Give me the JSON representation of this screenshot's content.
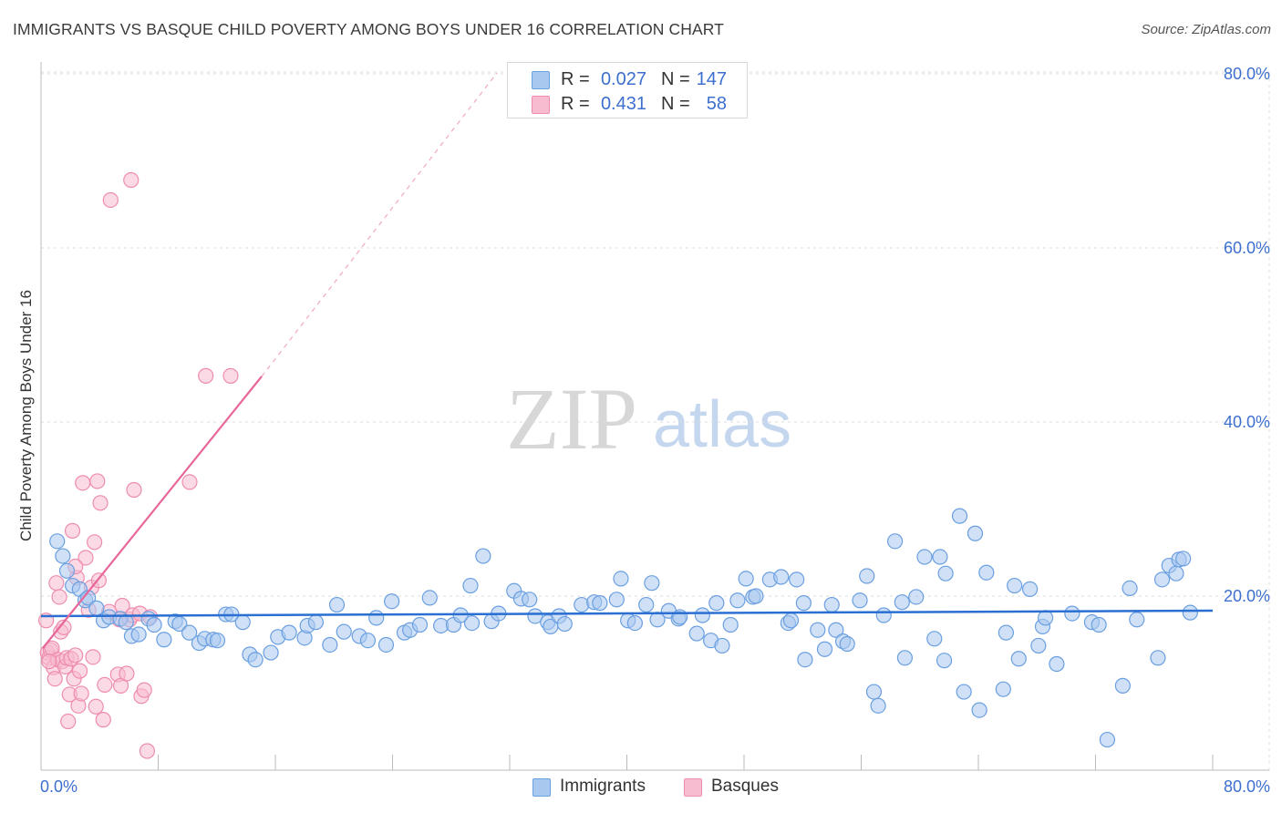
{
  "title": "IMMIGRANTS VS BASQUE CHILD POVERTY AMONG BOYS UNDER 16 CORRELATION CHART",
  "source": "Source: ZipAtlas.com",
  "watermark": {
    "zip": "ZIP",
    "atlas": "atlas"
  },
  "colors": {
    "immigrants_fill": "#a9c8f0",
    "immigrants_stroke": "#6a9fe0",
    "immigrants_line": "#2a6fd1",
    "basques_fill": "#f7bcd0",
    "basques_stroke": "#ee8cad",
    "basques_line": "#e8679a",
    "axis_label": "#3c6fcf",
    "grid": "#dcdcdc"
  },
  "legend": {
    "rows": [
      {
        "r_label": "R =",
        "r_value": "0.027",
        "n_label": "N =",
        "n_value": "147"
      },
      {
        "r_label": "R =",
        "r_value": "0.431",
        "n_label": "N =",
        "n_value": "58"
      }
    ],
    "bottom": [
      "Immigrants",
      "Basques"
    ]
  },
  "chart_data": {
    "type": "scatter",
    "ylabel": "Child Poverty Among Boys Under 16",
    "xlim": [
      0,
      80
    ],
    "ylim": [
      0,
      80
    ],
    "x_tick_labels": [
      "0.0%",
      "80.0%"
    ],
    "y_tick_labels": [
      "20.0%",
      "40.0%",
      "60.0%",
      "80.0%"
    ],
    "y_ticks": [
      20,
      40,
      60,
      80
    ],
    "grid": "horizontal dashed",
    "legend_placement": "top-center and bottom",
    "series": [
      {
        "name": "Immigrants",
        "trend": {
          "x": [
            0,
            80
          ],
          "y": [
            17.6,
            18.2
          ]
        },
        "points": [
          [
            0.5,
            26.3
          ],
          [
            0.9,
            24.6
          ],
          [
            1.2,
            22.9
          ],
          [
            1.6,
            21.2
          ],
          [
            2.1,
            20.8
          ],
          [
            2.5,
            19.5
          ],
          [
            2.7,
            19.8
          ],
          [
            3.3,
            18.6
          ],
          [
            3.8,
            17.2
          ],
          [
            4.2,
            17.6
          ],
          [
            5.0,
            17.4
          ],
          [
            5.4,
            17.0
          ],
          [
            5.8,
            15.4
          ],
          [
            6.3,
            15.6
          ],
          [
            7.0,
            17.4
          ],
          [
            7.4,
            16.7
          ],
          [
            8.1,
            15.0
          ],
          [
            8.9,
            17.1
          ],
          [
            9.2,
            16.8
          ],
          [
            9.9,
            15.8
          ],
          [
            10.6,
            14.6
          ],
          [
            11.0,
            15.1
          ],
          [
            11.6,
            15.0
          ],
          [
            11.9,
            14.9
          ],
          [
            12.5,
            17.9
          ],
          [
            12.9,
            17.9
          ],
          [
            13.7,
            17.0
          ],
          [
            14.2,
            13.3
          ],
          [
            14.6,
            12.7
          ],
          [
            15.7,
            13.5
          ],
          [
            16.2,
            15.3
          ],
          [
            17.0,
            15.8
          ],
          [
            18.1,
            15.2
          ],
          [
            18.3,
            16.6
          ],
          [
            18.9,
            17.0
          ],
          [
            19.9,
            14.4
          ],
          [
            20.4,
            19.0
          ],
          [
            20.9,
            15.9
          ],
          [
            22.0,
            15.4
          ],
          [
            22.6,
            14.9
          ],
          [
            23.2,
            17.5
          ],
          [
            23.9,
            14.4
          ],
          [
            24.3,
            19.4
          ],
          [
            25.2,
            15.8
          ],
          [
            25.6,
            16.1
          ],
          [
            26.3,
            16.7
          ],
          [
            27.0,
            19.8
          ],
          [
            27.8,
            16.6
          ],
          [
            28.7,
            16.7
          ],
          [
            29.2,
            17.8
          ],
          [
            29.9,
            21.2
          ],
          [
            30.0,
            16.9
          ],
          [
            30.8,
            24.6
          ],
          [
            31.4,
            17.1
          ],
          [
            31.9,
            18.0
          ],
          [
            33.0,
            20.6
          ],
          [
            33.5,
            19.7
          ],
          [
            34.1,
            19.6
          ],
          [
            34.5,
            17.7
          ],
          [
            35.4,
            17.0
          ],
          [
            35.6,
            16.5
          ],
          [
            36.2,
            17.7
          ],
          [
            36.6,
            16.8
          ],
          [
            37.8,
            19.0
          ],
          [
            38.7,
            19.3
          ],
          [
            39.1,
            19.2
          ],
          [
            40.3,
            19.6
          ],
          [
            40.6,
            22.0
          ],
          [
            41.1,
            17.2
          ],
          [
            41.6,
            16.9
          ],
          [
            42.4,
            19.0
          ],
          [
            42.8,
            21.5
          ],
          [
            43.2,
            17.3
          ],
          [
            44.0,
            18.3
          ],
          [
            44.7,
            17.4
          ],
          [
            44.8,
            17.6
          ],
          [
            46.0,
            15.7
          ],
          [
            46.4,
            17.8
          ],
          [
            47.0,
            14.9
          ],
          [
            47.4,
            19.2
          ],
          [
            47.8,
            14.3
          ],
          [
            48.4,
            16.7
          ],
          [
            48.9,
            19.5
          ],
          [
            49.5,
            22.0
          ],
          [
            50.0,
            19.9
          ],
          [
            50.2,
            20.0
          ],
          [
            51.2,
            21.9
          ],
          [
            52.0,
            22.2
          ],
          [
            52.5,
            16.9
          ],
          [
            52.7,
            17.2
          ],
          [
            53.1,
            21.9
          ],
          [
            53.6,
            19.2
          ],
          [
            53.7,
            12.7
          ],
          [
            54.6,
            16.1
          ],
          [
            55.1,
            13.9
          ],
          [
            55.6,
            19.0
          ],
          [
            55.9,
            16.1
          ],
          [
            56.4,
            14.8
          ],
          [
            56.7,
            14.5
          ],
          [
            57.6,
            19.5
          ],
          [
            58.1,
            22.3
          ],
          [
            58.6,
            9.0
          ],
          [
            58.9,
            7.4
          ],
          [
            59.3,
            17.8
          ],
          [
            60.1,
            26.3
          ],
          [
            60.6,
            19.3
          ],
          [
            60.8,
            12.9
          ],
          [
            61.6,
            19.9
          ],
          [
            62.2,
            24.5
          ],
          [
            62.9,
            15.1
          ],
          [
            63.3,
            24.5
          ],
          [
            63.6,
            12.6
          ],
          [
            63.7,
            22.6
          ],
          [
            64.7,
            29.2
          ],
          [
            65.0,
            9.0
          ],
          [
            65.8,
            27.2
          ],
          [
            66.1,
            6.9
          ],
          [
            66.6,
            22.7
          ],
          [
            67.8,
            9.3
          ],
          [
            68.0,
            15.8
          ],
          [
            68.6,
            21.2
          ],
          [
            68.9,
            12.8
          ],
          [
            69.7,
            20.8
          ],
          [
            70.3,
            14.3
          ],
          [
            70.6,
            16.5
          ],
          [
            70.8,
            17.5
          ],
          [
            71.6,
            12.2
          ],
          [
            72.7,
            18.0
          ],
          [
            74.1,
            17.0
          ],
          [
            74.6,
            16.7
          ],
          [
            75.2,
            3.5
          ],
          [
            76.3,
            9.7
          ],
          [
            76.8,
            20.9
          ],
          [
            77.3,
            17.3
          ],
          [
            78.8,
            12.9
          ],
          [
            79.1,
            21.9
          ],
          [
            79.6,
            23.5
          ],
          [
            80.1,
            22.6
          ],
          [
            80.3,
            24.2
          ],
          [
            80.6,
            24.3
          ],
          [
            81.1,
            18.1
          ],
          [
            83.4,
            24.3
          ],
          [
            83.9,
            14.0
          ]
        ]
      },
      {
        "name": "Basques",
        "trend": {
          "x": [
            0.2,
            15.6
          ],
          "y": [
            14.0,
            45.0
          ],
          "extension_x": [
            15.6,
            40
          ],
          "extension_y": [
            45.0,
            93.9
          ]
        },
        "points": [
          [
            0.1,
            17.2
          ],
          [
            0.2,
            13.5
          ],
          [
            0.3,
            12.9
          ],
          [
            0.4,
            13.8
          ],
          [
            0.5,
            14.0
          ],
          [
            0.6,
            11.8
          ],
          [
            0.7,
            10.5
          ],
          [
            0.8,
            21.5
          ],
          [
            0.9,
            12.7
          ],
          [
            1.1,
            15.9
          ],
          [
            1.2,
            12.5
          ],
          [
            1.3,
            16.4
          ],
          [
            1.4,
            11.9
          ],
          [
            1.5,
            12.9
          ],
          [
            1.6,
            5.6
          ],
          [
            1.7,
            8.7
          ],
          [
            1.8,
            12.8
          ],
          [
            1.9,
            27.5
          ],
          [
            2.0,
            10.5
          ],
          [
            2.1,
            13.2
          ],
          [
            2.2,
            22.1
          ],
          [
            2.3,
            7.4
          ],
          [
            2.4,
            11.4
          ],
          [
            2.5,
            8.8
          ],
          [
            2.6,
            33.0
          ],
          [
            2.8,
            24.4
          ],
          [
            3.0,
            18.4
          ],
          [
            3.2,
            21.0
          ],
          [
            3.3,
            13.0
          ],
          [
            3.4,
            26.2
          ],
          [
            3.5,
            7.3
          ],
          [
            3.6,
            33.2
          ],
          [
            3.7,
            21.8
          ],
          [
            3.8,
            30.7
          ],
          [
            4.0,
            5.8
          ],
          [
            4.1,
            9.8
          ],
          [
            4.4,
            18.2
          ],
          [
            4.5,
            65.5
          ],
          [
            5.0,
            11.0
          ],
          [
            5.1,
            17.3
          ],
          [
            5.2,
            9.7
          ],
          [
            5.3,
            18.9
          ],
          [
            5.6,
            11.1
          ],
          [
            5.8,
            17.3
          ],
          [
            5.9,
            67.8
          ],
          [
            6.0,
            17.8
          ],
          [
            6.1,
            32.2
          ],
          [
            6.5,
            18.0
          ],
          [
            6.6,
            8.5
          ],
          [
            6.8,
            9.2
          ],
          [
            7.0,
            2.2
          ],
          [
            7.2,
            17.6
          ],
          [
            11.0,
            45.3
          ],
          [
            12.7,
            45.3
          ],
          [
            9.9,
            33.1
          ],
          [
            2.1,
            23.4
          ],
          [
            1.0,
            19.9
          ],
          [
            0.3,
            12.5
          ]
        ]
      }
    ]
  }
}
